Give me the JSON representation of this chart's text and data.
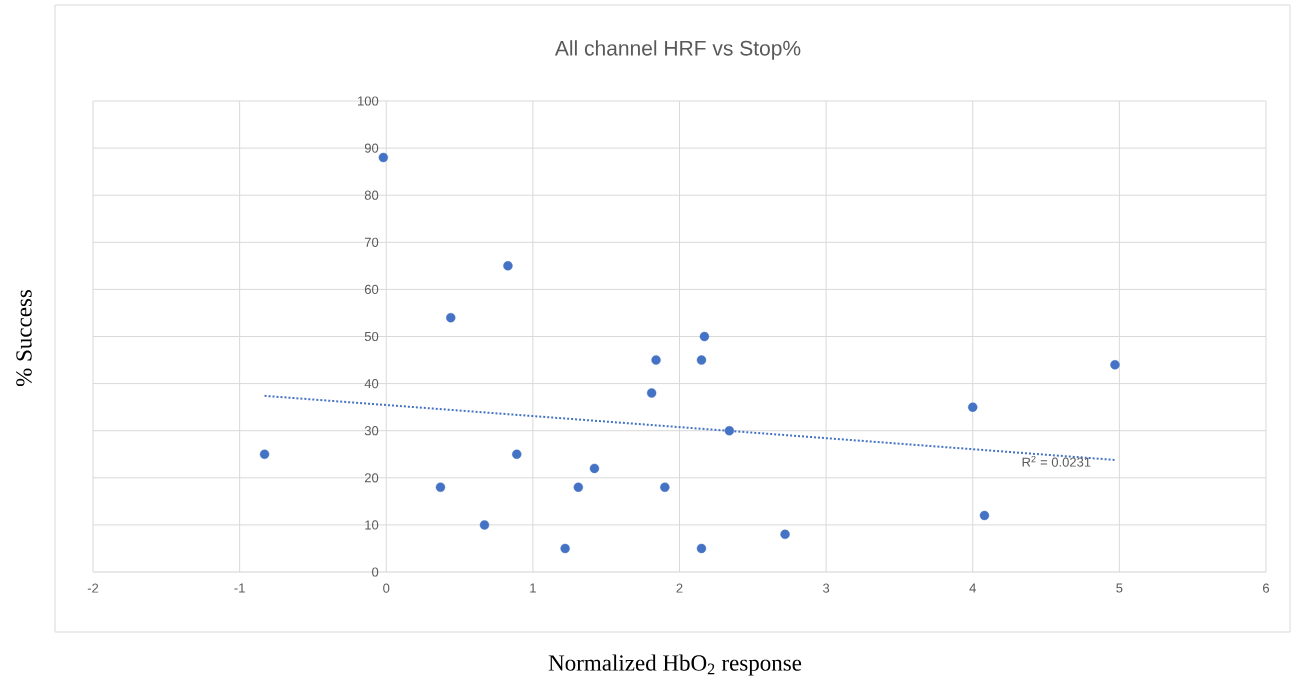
{
  "chart_data": {
    "type": "scatter",
    "title": "All channel HRF vs Stop%",
    "xlabel": "Normalized HbO$_{2}$ response",
    "ylabel": "% Success",
    "xlim": [
      -2,
      6
    ],
    "xticks": [
      -2,
      -1,
      0,
      1,
      2,
      3,
      4,
      5,
      6
    ],
    "ylim": [
      0,
      100
    ],
    "yticks": [
      0,
      10,
      20,
      30,
      40,
      50,
      60,
      70,
      80,
      90,
      100
    ],
    "grid": true,
    "marker": "circle",
    "series": [
      {
        "type": "scatter",
        "color": "#4472c4",
        "x": [
          -0.02,
          -0.83,
          0.83,
          0.44,
          0.37,
          0.67,
          0.89,
          1.22,
          1.31,
          1.42,
          1.81,
          1.84,
          1.9,
          2.15,
          2.17,
          2.15,
          2.34,
          2.72,
          4.0,
          4.08,
          4.97
        ],
        "values": [
          88,
          25,
          65,
          54,
          18,
          10,
          25,
          5,
          18,
          22,
          38,
          45,
          18,
          45,
          50,
          5,
          30,
          8,
          35,
          12,
          44
        ]
      },
      {
        "type": "line",
        "color": "#4472c4",
        "line_style": "dotted",
        "marker": "none",
        "x": [
          -0.83,
          4.97
        ],
        "values": [
          37.4,
          23.8
        ]
      }
    ],
    "annotations": [
      {
        "text": "R$^{2}$ = 0.0231",
        "x": 4.57,
        "y": 23.5
      }
    ]
  }
}
